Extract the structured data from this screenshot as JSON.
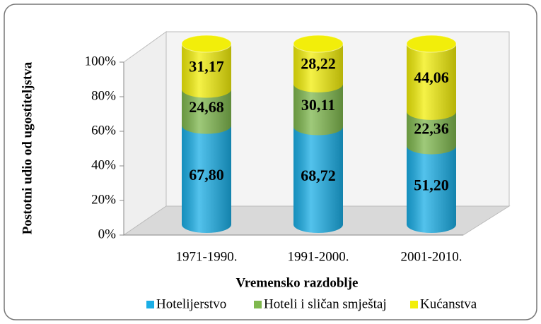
{
  "chart_data": {
    "type": "bar",
    "stacking": "percent",
    "x_label": "Vremensko razdoblje",
    "y_label": "Postotni udio od ugostiteljstva",
    "categories": [
      "1971-1990.",
      "1991-2000.",
      "2001-2010."
    ],
    "series": [
      {
        "name": "Hotelijerstvo",
        "color": "#1aaee6",
        "values": [
          67.8,
          68.72,
          51.2
        ],
        "value_labels": [
          "67,80",
          "68,72",
          "51,20"
        ]
      },
      {
        "name": "Hoteli i sličan smještaj",
        "color": "#7fb84e",
        "values": [
          24.68,
          30.11,
          22.36
        ],
        "value_labels": [
          "24,68",
          "30,11",
          "22,36"
        ]
      },
      {
        "name": "Kućanstva",
        "color": "#f2ee0a",
        "values": [
          31.17,
          28.22,
          44.06
        ],
        "value_labels": [
          "31,17",
          "28,22",
          "44,06"
        ]
      }
    ],
    "ylim": [
      0,
      100
    ],
    "yticks": [
      {
        "value": 0,
        "label": "0%"
      },
      {
        "value": 20,
        "label": "20%"
      },
      {
        "value": 40,
        "label": "40%"
      },
      {
        "value": 60,
        "label": "60%"
      },
      {
        "value": 80,
        "label": "80%"
      },
      {
        "value": 100,
        "label": "100%"
      }
    ],
    "legend": "bottom"
  }
}
